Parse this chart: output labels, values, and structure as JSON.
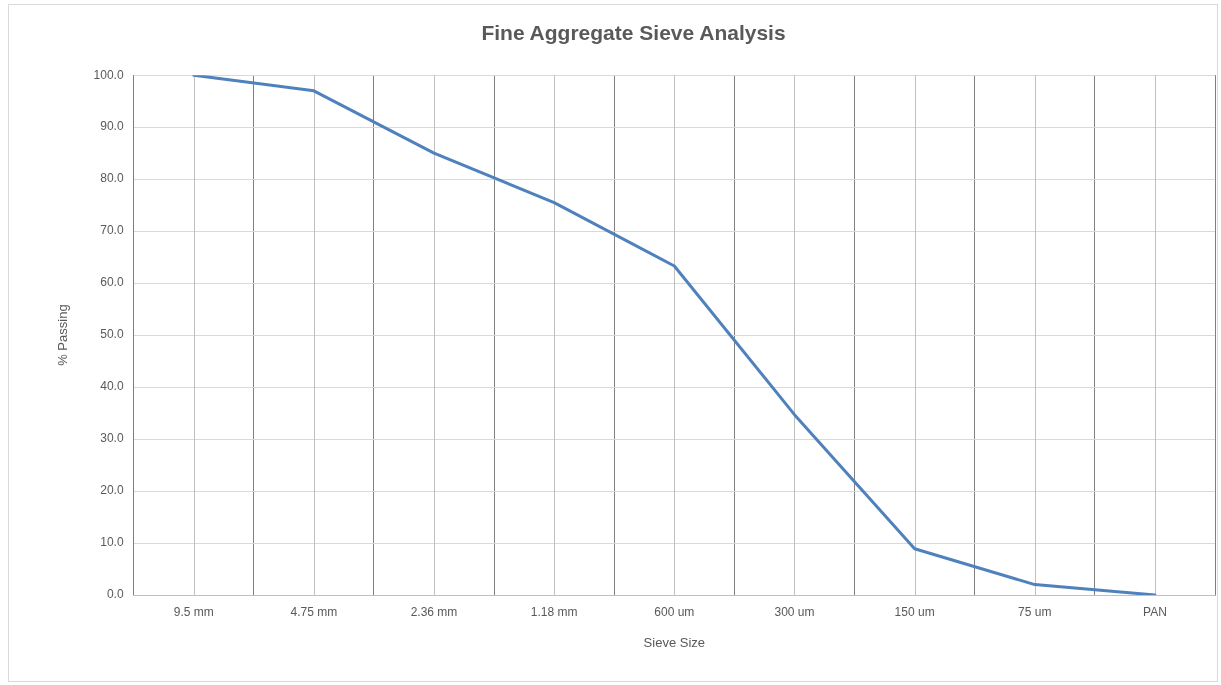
{
  "chart_data": {
    "type": "line",
    "title": "Fine Aggregate Sieve Analysis",
    "xlabel": "Sieve Size",
    "ylabel": "% Passing",
    "categories": [
      "9.5 mm",
      "4.75 mm",
      "2.36 mm",
      "1.18 mm",
      "600 um",
      "300 um",
      "150 um",
      "75 um",
      "PAN"
    ],
    "series": [
      {
        "color": "#4f81bd",
        "values": [
          100.0,
          97.0,
          85.0,
          75.5,
          63.3,
          34.7,
          8.9,
          2.0,
          0.0
        ]
      }
    ],
    "ylim": [
      0,
      100
    ],
    "yticks": [
      {
        "value": 0,
        "label": "0.0"
      },
      {
        "value": 10,
        "label": "10.0"
      },
      {
        "value": 20,
        "label": "20.0"
      },
      {
        "value": 30,
        "label": "30.0"
      },
      {
        "value": 40,
        "label": "40.0"
      },
      {
        "value": 50,
        "label": "50.0"
      },
      {
        "value": 60,
        "label": "60.0"
      },
      {
        "value": 70,
        "label": "70.0"
      },
      {
        "value": 80,
        "label": "80.0"
      },
      {
        "value": 90,
        "label": "90.0"
      },
      {
        "value": 100,
        "label": "100.0"
      }
    ],
    "grid": true,
    "legend": false,
    "marker": "none",
    "line_style": "solid"
  }
}
